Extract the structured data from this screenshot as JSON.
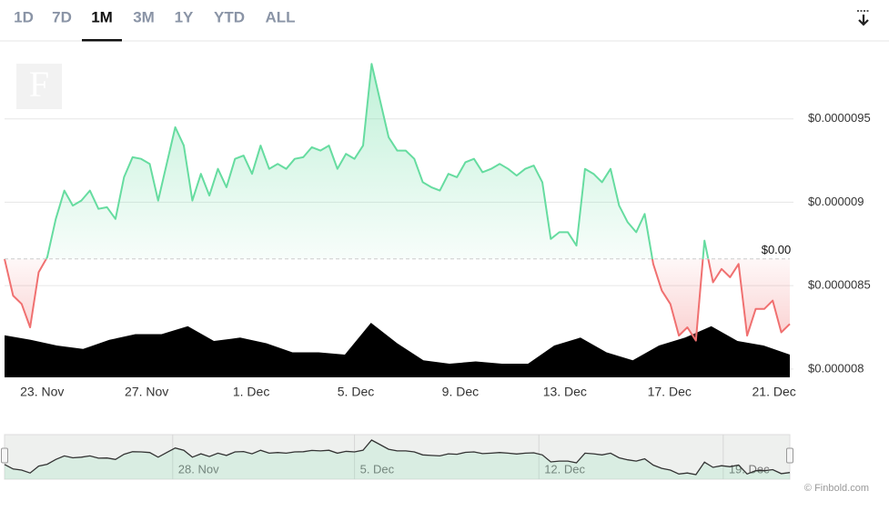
{
  "range_tabs": [
    "1D",
    "7D",
    "1M",
    "3M",
    "1Y",
    "YTD",
    "ALL"
  ],
  "selected_tab_index": 2,
  "watermark": "F",
  "credits": "© Finbold.com",
  "chart_data": {
    "type": "line",
    "rising_color": "#66dca0",
    "falling_color": "#f07070",
    "grid": true,
    "baseline": {
      "value": 8.66e-06,
      "label": "$0.00"
    },
    "ylim": [
      7.95e-06,
      9.94e-06
    ],
    "yticks": [
      {
        "value": 8e-06,
        "label": "$0.000008"
      },
      {
        "value": 8.5e-06,
        "label": "$0.0000085"
      },
      {
        "value": 9e-06,
        "label": "$0.000009"
      },
      {
        "value": 9.5e-06,
        "label": "$0.0000095"
      }
    ],
    "xlim": [
      0,
      92
    ],
    "xticks": [
      {
        "value": 4.4,
        "label": "23. Nov"
      },
      {
        "value": 16.65,
        "label": "27. Nov"
      },
      {
        "value": 28.9,
        "label": "1. Dec"
      },
      {
        "value": 41.15,
        "label": "5. Dec"
      },
      {
        "value": 53.4,
        "label": "9. Dec"
      },
      {
        "value": 65.65,
        "label": "13. Dec"
      },
      {
        "value": 77.9,
        "label": "17. Dec"
      },
      {
        "value": 90.15,
        "label": "21. Dec"
      }
    ],
    "values": [
      8.66e-06,
      8.44e-06,
      8.39e-06,
      8.25e-06,
      8.58e-06,
      8.67e-06,
      8.9e-06,
      9.07e-06,
      8.98e-06,
      9.01e-06,
      9.07e-06,
      8.96e-06,
      8.97e-06,
      8.9e-06,
      9.15e-06,
      9.27e-06,
      9.26e-06,
      9.23e-06,
      9.01e-06,
      9.23e-06,
      9.45e-06,
      9.34e-06,
      9.01e-06,
      9.17e-06,
      9.04e-06,
      9.2e-06,
      9.09e-06,
      9.26e-06,
      9.28e-06,
      9.17e-06,
      9.34e-06,
      9.2e-06,
      9.23e-06,
      9.2e-06,
      9.26e-06,
      9.27e-06,
      9.33e-06,
      9.31e-06,
      9.34e-06,
      9.2e-06,
      9.29e-06,
      9.26e-06,
      9.34e-06,
      9.83e-06,
      9.61e-06,
      9.39e-06,
      9.31e-06,
      9.31e-06,
      9.26e-06,
      9.12e-06,
      9.09e-06,
      9.07e-06,
      9.17e-06,
      9.15e-06,
      9.24e-06,
      9.26e-06,
      9.18e-06,
      9.2e-06,
      9.23e-06,
      9.2e-06,
      9.16e-06,
      9.2e-06,
      9.22e-06,
      9.12e-06,
      8.78e-06,
      8.82e-06,
      8.82e-06,
      8.74e-06,
      9.2e-06,
      9.17e-06,
      9.12e-06,
      9.2e-06,
      8.98e-06,
      8.88e-06,
      8.82e-06,
      8.93e-06,
      8.63e-06,
      8.47e-06,
      8.39e-06,
      8.2e-06,
      8.25e-06,
      8.17e-06,
      8.77e-06,
      8.52e-06,
      8.6e-06,
      8.55e-06,
      8.63e-06,
      8.2e-06,
      8.36e-06,
      8.36e-06,
      8.41e-06,
      8.22e-06,
      8.27e-06
    ],
    "volume": {
      "color": "#000000",
      "values": [
        37,
        33,
        28,
        25,
        33,
        38,
        38,
        45,
        32,
        35,
        30,
        22,
        22,
        20,
        48,
        30,
        15,
        12,
        14,
        12,
        12,
        28,
        35,
        22,
        15,
        28,
        35,
        45,
        32,
        28,
        20
      ]
    },
    "navigator": {
      "xticks": [
        {
          "value": 19.7,
          "label": "28. Nov"
        },
        {
          "value": 41.0,
          "label": "5. Dec"
        },
        {
          "value": 62.6,
          "label": "12. Dec"
        },
        {
          "value": 84.2,
          "label": "19. Dec"
        }
      ]
    }
  }
}
